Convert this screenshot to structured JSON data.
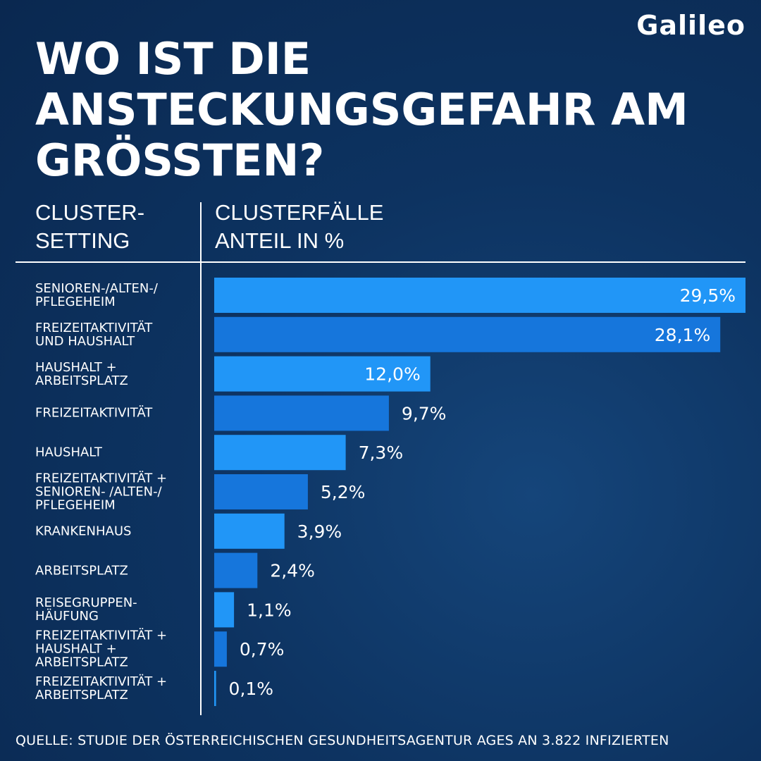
{
  "brand": {
    "logo_text": "Galileo"
  },
  "title_lines": [
    "WO IST DIE",
    "ANSTECKUNGSGEFAHR AM",
    "GRÖßTEN?"
  ],
  "columns": {
    "left": [
      "CLUSTER-",
      "SETTING"
    ],
    "right": [
      "CLUSTERFÄLLE",
      "ANTEIL IN %"
    ]
  },
  "source": "QUELLE: STUDIE DER ÖSTERREICHISCHEN GESUNDHEITSAGENTUR AGES AN 3.822 INFIZIERTEN",
  "colors": {
    "bar_light": "#2196f7",
    "bar_dark": "#1676dc",
    "background": "#0d3361"
  },
  "chart_data": {
    "type": "bar",
    "orientation": "horizontal",
    "categories": [
      [
        "SENIOREN-/ALTEN-/",
        "PFLEGEHEIM"
      ],
      [
        "FREIZEITAKTIVITÄT",
        "UND HAUSHALT"
      ],
      [
        "HAUSHALT +",
        "ARBEITSPLATZ"
      ],
      [
        "FREIZEITAKTIVITÄT"
      ],
      [
        "HAUSHALT"
      ],
      [
        "FREIZEITAKTIVITÄT +",
        "SENIOREN- /ALTEN-/",
        "PFLEGEHEIM"
      ],
      [
        "KRANKENHAUS"
      ],
      [
        "ARBEITSPLATZ"
      ],
      [
        "REISEGRUPPEN-",
        "HÄUFUNG"
      ],
      [
        "FREIZEITAKTIVITÄT +",
        "HAUSHALT +",
        "ARBEITSPLATZ"
      ],
      [
        "FREIZEITAKTIVITÄT +",
        "ARBEITSPLATZ"
      ]
    ],
    "values": [
      29.5,
      28.1,
      12.0,
      9.7,
      7.3,
      5.2,
      3.9,
      2.4,
      1.1,
      0.7,
      0.1
    ],
    "value_labels": [
      "29,5%",
      "28,1%",
      "12,0%",
      "9,7%",
      "7,3%",
      "5,2%",
      "3,9%",
      "2,4%",
      "1,1%",
      "0,7%",
      "0,1%"
    ],
    "xlim": [
      0,
      29.5
    ],
    "grid": false,
    "legend": "none"
  }
}
